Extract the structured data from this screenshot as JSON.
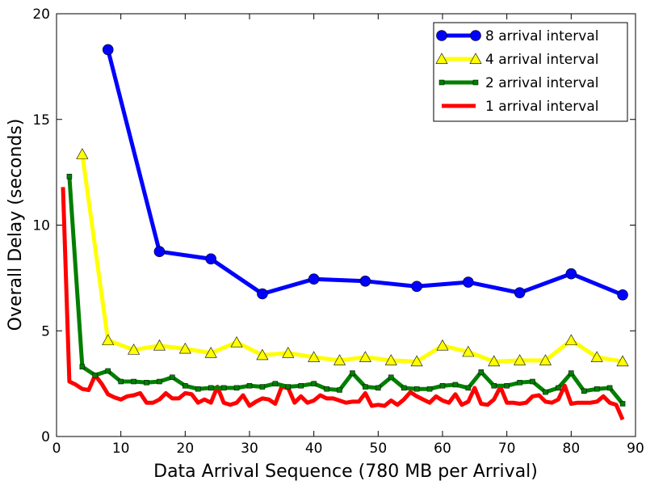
{
  "chart_data": {
    "type": "line",
    "title": "",
    "xlabel": "Data Arrival Sequence (780 MB per Arrival)",
    "ylabel": "Overall Delay (seconds)",
    "xlim": [
      0,
      90
    ],
    "ylim": [
      0,
      20
    ],
    "xticks": [
      "0",
      "10",
      "20",
      "30",
      "40",
      "50",
      "60",
      "70",
      "80",
      "90"
    ],
    "yticks": [
      "0",
      "5",
      "10",
      "15",
      "20"
    ],
    "grid": false,
    "legend_position": "top-right",
    "series": [
      {
        "name": "8 arrival interval",
        "color": "#0000ff",
        "marker": "circle",
        "x": [
          8,
          16,
          24,
          32,
          40,
          48,
          56,
          64,
          72,
          80,
          88
        ],
        "y": [
          18.3,
          8.75,
          8.4,
          6.75,
          7.45,
          7.35,
          7.1,
          7.3,
          6.8,
          7.7,
          6.7
        ]
      },
      {
        "name": "4 arrival interval",
        "color": "#ffff00",
        "marker": "triangle",
        "x": [
          4,
          8,
          12,
          16,
          20,
          24,
          28,
          32,
          36,
          40,
          44,
          48,
          52,
          56,
          60,
          64,
          68,
          72,
          76,
          80,
          84,
          88
        ],
        "y": [
          13.35,
          4.55,
          4.1,
          4.3,
          4.15,
          3.95,
          4.45,
          3.85,
          3.95,
          3.75,
          3.6,
          3.75,
          3.6,
          3.55,
          4.3,
          4.0,
          3.55,
          3.6,
          3.6,
          4.55,
          3.75,
          3.55
        ]
      },
      {
        "name": "2 arrival interval",
        "color": "#007f00",
        "marker": "square",
        "x": [
          2,
          4,
          6,
          8,
          10,
          12,
          14,
          16,
          18,
          20,
          22,
          24,
          26,
          28,
          30,
          32,
          34,
          36,
          38,
          40,
          42,
          44,
          46,
          48,
          50,
          52,
          54,
          56,
          58,
          60,
          62,
          64,
          66,
          68,
          70,
          72,
          74,
          76,
          78,
          80,
          82,
          84,
          86,
          88
        ],
        "y": [
          12.3,
          3.3,
          2.9,
          3.1,
          2.6,
          2.6,
          2.55,
          2.6,
          2.8,
          2.4,
          2.25,
          2.3,
          2.3,
          2.3,
          2.4,
          2.35,
          2.5,
          2.35,
          2.4,
          2.5,
          2.25,
          2.2,
          3.0,
          2.35,
          2.3,
          2.8,
          2.3,
          2.25,
          2.25,
          2.4,
          2.45,
          2.3,
          3.05,
          2.4,
          2.4,
          2.55,
          2.6,
          2.1,
          2.3,
          3.0,
          2.15,
          2.25,
          2.3,
          1.55
        ]
      },
      {
        "name": "1 arrival interval",
        "color": "#ff0000",
        "marker": "none",
        "x": [
          1,
          2,
          3,
          4,
          5,
          6,
          7,
          8,
          9,
          10,
          11,
          12,
          13,
          14,
          15,
          16,
          17,
          18,
          19,
          20,
          21,
          22,
          23,
          24,
          25,
          26,
          27,
          28,
          29,
          30,
          31,
          32,
          33,
          34,
          35,
          36,
          37,
          38,
          39,
          40,
          41,
          42,
          43,
          44,
          45,
          46,
          47,
          48,
          49,
          50,
          51,
          52,
          53,
          54,
          55,
          56,
          57,
          58,
          59,
          60,
          61,
          62,
          63,
          64,
          65,
          66,
          67,
          68,
          69,
          70,
          71,
          72,
          73,
          74,
          75,
          76,
          77,
          78,
          79,
          80,
          81,
          82,
          83,
          84,
          85,
          86,
          87,
          88
        ],
        "y": [
          11.8,
          2.6,
          2.45,
          2.25,
          2.2,
          2.9,
          2.5,
          2.0,
          1.85,
          1.75,
          1.9,
          1.95,
          2.05,
          1.6,
          1.6,
          1.75,
          2.05,
          1.8,
          1.8,
          2.05,
          2.0,
          1.6,
          1.75,
          1.6,
          2.35,
          1.6,
          1.5,
          1.6,
          1.95,
          1.45,
          1.65,
          1.8,
          1.75,
          1.55,
          2.35,
          2.3,
          1.6,
          1.9,
          1.6,
          1.7,
          1.95,
          1.8,
          1.8,
          1.7,
          1.6,
          1.65,
          1.65,
          2.05,
          1.45,
          1.5,
          1.45,
          1.7,
          1.5,
          1.75,
          2.1,
          1.9,
          1.75,
          1.6,
          1.9,
          1.7,
          1.6,
          2.0,
          1.5,
          1.65,
          2.3,
          1.55,
          1.5,
          1.75,
          2.35,
          1.6,
          1.6,
          1.55,
          1.6,
          1.9,
          1.95,
          1.65,
          1.6,
          1.75,
          2.4,
          1.55,
          1.6,
          1.6,
          1.6,
          1.65,
          1.9,
          1.6,
          1.5,
          0.8
        ]
      }
    ]
  }
}
